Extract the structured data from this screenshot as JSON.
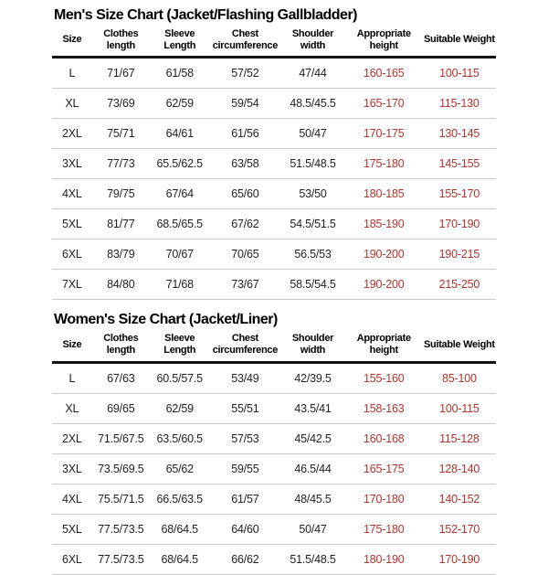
{
  "page": {
    "background_color": "#ffffff",
    "text_color": "#1f1f1f",
    "accent_red": "#b2322c"
  },
  "tables": [
    {
      "title": "Men's Size Chart (Jacket/Flashing Gallbladder)",
      "columns": [
        "Size",
        "Clothes length",
        "Sleeve Length",
        "Chest circumference",
        "Shoulder width",
        "Appropriate height",
        "Suitable Weight"
      ],
      "red_columns": [
        5,
        6
      ],
      "rows": [
        [
          "L",
          "71/67",
          "61/58",
          "57/52",
          "47/44",
          "160-165",
          "100-115"
        ],
        [
          "XL",
          "73/69",
          "62/59",
          "59/54",
          "48.5/45.5",
          "165-170",
          "115-130"
        ],
        [
          "2XL",
          "75/71",
          "64/61",
          "61/56",
          "50/47",
          "170-175",
          "130-145"
        ],
        [
          "3XL",
          "77/73",
          "65.5/62.5",
          "63/58",
          "51.5/48.5",
          "175-180",
          "145-155"
        ],
        [
          "4XL",
          "79/75",
          "67/64",
          "65/60",
          "53/50",
          "180-185",
          "155-170"
        ],
        [
          "5XL",
          "81/77",
          "68.5/65.5",
          "67/62",
          "54.5/51.5",
          "185-190",
          "170-190"
        ],
        [
          "6XL",
          "83/79",
          "70/67",
          "70/65",
          "56.5/53",
          "190-200",
          "190-215"
        ],
        [
          "7XL",
          "84/80",
          "71/68",
          "73/67",
          "58.5/54.5",
          "190-200",
          "215-250"
        ]
      ]
    },
    {
      "title": "Women's Size Chart (Jacket/Liner)",
      "columns": [
        "Size",
        "Clothes length",
        "Sleeve Length",
        "Chest circumference",
        "Shoulder width",
        "Appropriate height",
        "Suitable Weight"
      ],
      "red_columns": [
        5,
        6
      ],
      "rows": [
        [
          "L",
          "67/63",
          "60.5/57.5",
          "53/49",
          "42/39.5",
          "155-160",
          "85-100"
        ],
        [
          "XL",
          "69/65",
          "62/59",
          "55/51",
          "43.5/41",
          "158-163",
          "100-115"
        ],
        [
          "2XL",
          "71.5/67.5",
          "63.5/60.5",
          "57/53",
          "45/42.5",
          "160-168",
          "115-128"
        ],
        [
          "3XL",
          "73.5/69.5",
          "65/62",
          "59/55",
          "46.5/44",
          "165-175",
          "128-140"
        ],
        [
          "4XL",
          "75.5/71.5",
          "66.5/63.5",
          "61/57",
          "48/45.5",
          "170-180",
          "140-152"
        ],
        [
          "5XL",
          "77.5/73.5",
          "68/64.5",
          "64/60",
          "50/47",
          "175-180",
          "152-170"
        ],
        [
          "6XL",
          "77.5/73.5",
          "68/64.5",
          "66/62",
          "51.5/48.5",
          "180-190",
          "170-190"
        ]
      ]
    }
  ]
}
